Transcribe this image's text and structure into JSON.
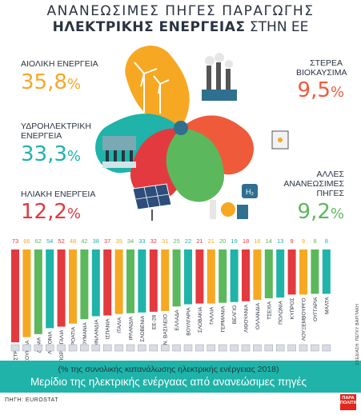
{
  "header": {
    "title_line1": "ΑΝΑΝΕΩΣΙΜΕΣ ΠΗΓΕΣ ΠΑΡΑΓΩΓΗΣ",
    "title_line2_bold": "ΗΛΕΚΤΡΙΚΗΣ ΕΝΕΡΓΕΙΑΣ",
    "title_line2_rest": " ΣΤΗΝ ΕΕ"
  },
  "sources": {
    "wind": {
      "label": "ΑΙΟΛΙΚΗ ΕΝΕΡΓΕΙΑ",
      "value": "35,8",
      "unit": "%",
      "color": "#f7a823"
    },
    "hydro": {
      "label_line1": "ΥΔΡΟΗΛΕΚΤΡΙΚΗ",
      "label_line2": "ΕΝΕΡΓΕΙΑ",
      "value": "33,3",
      "unit": "%",
      "color": "#1fb3a9"
    },
    "solar": {
      "label": "ΗΛΙΑΚΗ ΕΝΕΡΓΕΙΑ",
      "value": "12,2",
      "unit": "%",
      "color": "#e23a3f"
    },
    "biofuel": {
      "label_line1": "ΣΤΕΡΕΑ",
      "label_line2": "ΒΙΟΚΑΥΣΙΜΑ",
      "value": "9,5",
      "unit": "%",
      "color": "#ef5b3a"
    },
    "other": {
      "label_line1": "ΑΛΛΕΣ",
      "label_line2": "ΑΝΑΝΕΩΣΙΜΕΣ",
      "label_line3": "ΠΗΓΕΣ",
      "value": "9,2",
      "unit": "%",
      "color": "#5cb85c"
    }
  },
  "chart_data": [
    {
      "type": "pie",
      "categories": [
        "ΑΙΟΛΙΚΗ ΕΝΕΡΓΕΙΑ",
        "ΥΔΡΟΗΛΕΚΤΡΙΚΗ ΕΝΕΡΓΕΙΑ",
        "ΗΛΙΑΚΗ ΕΝΕΡΓΕΙΑ",
        "ΣΤΕΡΕΑ ΒΙΟΚΑΥΣΙΜΑ",
        "ΑΛΛΕΣ ΑΝΑΝΕΩΣΙΜΕΣ ΠΗΓΕΣ"
      ],
      "values": [
        35.8,
        33.3,
        12.2,
        9.5,
        9.2
      ],
      "colors": [
        "#f7a823",
        "#1fb3a9",
        "#e23a3f",
        "#ef5b3a",
        "#5cb85c"
      ]
    },
    {
      "type": "bar",
      "categories": [
        "ΑΥΣΤΡΙΑ",
        "ΣΟΥΗΔΙΑ",
        "ΔΑΝΙΑ",
        "ΛΕΤΟΝΙΑ",
        "ΠΟΡΤΟΓΑΛΙΑ",
        "ΚΡΟΑΤΙΑ",
        "ΡΟΥΜΑΝΙΑ",
        "ΦΙΝΛΑΝΔΙΑ",
        "ΙΣΠΑΝΙΑ",
        "ΙΤΑΛΙΑ",
        "ΙΡΛΑΝΔΙΑ",
        "ΣΛΟΒΕΝΙΑ",
        "ΕΕ-28",
        "ΗΝ. ΒΑΣΙΛΕΙΟ",
        "ΕΛΛΑΔΑ",
        "ΒΟΥΛΓΑΡΙΑ",
        "ΣΛΟΒΑΚΙΑ",
        "ΓΑΛΛΙΑ",
        "ΓΕΡΜΑΝΙΑ",
        "ΒΕΛΓΙΟ",
        "ΛΙΘΟΥΑΝΙΑ",
        "ΟΛΛΑΝΔΙΑ",
        "ΤΣΕΧΙΑ",
        "ΠΟΛΩΝΙΑ",
        "ΚΥΠΡΟΣ",
        "ΛΟΥΞΕΜΒΟΥΡΓΟ",
        "ΟΥΓΓΑΡΙΑ",
        "ΜΑΛΤΑ"
      ],
      "values": [
        73,
        66,
        62,
        54,
        52,
        48,
        42,
        38,
        37,
        35,
        34,
        33,
        32,
        31,
        25,
        22,
        21,
        21,
        20,
        19,
        18,
        16,
        14,
        13,
        9,
        9,
        8,
        8
      ],
      "value_labels": [
        "73",
        "66",
        "62",
        "54",
        "52",
        "48",
        "42",
        "38",
        "37",
        "35",
        "34",
        "33",
        "32",
        "31",
        "25",
        "22",
        "21",
        "21",
        "20",
        "19",
        "18",
        "16",
        "14",
        "13",
        "9",
        "9",
        "8",
        "8"
      ],
      "ylim": [
        0,
        75
      ],
      "colors": [
        "#e23a3f",
        "#f7a823",
        "#5cb85c",
        "#1fb3a9"
      ],
      "xlabel": "(% της συνολικής κατανάλωσης ηλεκτρικής ενέργειας 2018)",
      "title": "Μερίδιο της ηλεκτρικής ενέργαας από ανανεώσιμες πηγές"
    }
  ],
  "footer": {
    "source": "ΠΗΓΗ: EUROSTAT",
    "designer": "ΣΧΕΔΙΑΣΗ: ΠΕΓΚΥ ΒΑΡΙΤΑΚΗ",
    "logo": "ΠΑΡΑ ΠΟΛΙΤΙΚΑ"
  }
}
